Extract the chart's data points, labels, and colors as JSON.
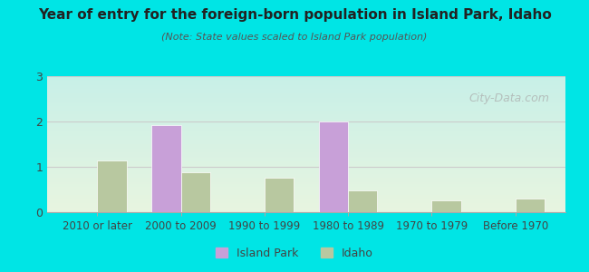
{
  "title": "Year of entry for the foreign-born population in Island Park, Idaho",
  "subtitle": "(Note: State values scaled to Island Park population)",
  "categories": [
    "2010 or later",
    "2000 to 2009",
    "1990 to 1999",
    "1980 to 1989",
    "1970 to 1979",
    "Before 1970"
  ],
  "island_park": [
    0,
    1.93,
    0,
    2.0,
    0,
    0
  ],
  "idaho": [
    1.15,
    0.88,
    0.77,
    0.48,
    0.26,
    0.3
  ],
  "island_park_color": "#c8a0d8",
  "idaho_color": "#b8c8a0",
  "background_color": "#00e5e5",
  "plot_bg_gradient_top": "#e8f5e0",
  "plot_bg_gradient_bottom": "#c8f0e8",
  "ylim": [
    0,
    3
  ],
  "yticks": [
    0,
    1,
    2,
    3
  ],
  "bar_width": 0.35,
  "watermark": "City-Data.com",
  "legend_island_park": "Island Park",
  "legend_idaho": "Idaho"
}
